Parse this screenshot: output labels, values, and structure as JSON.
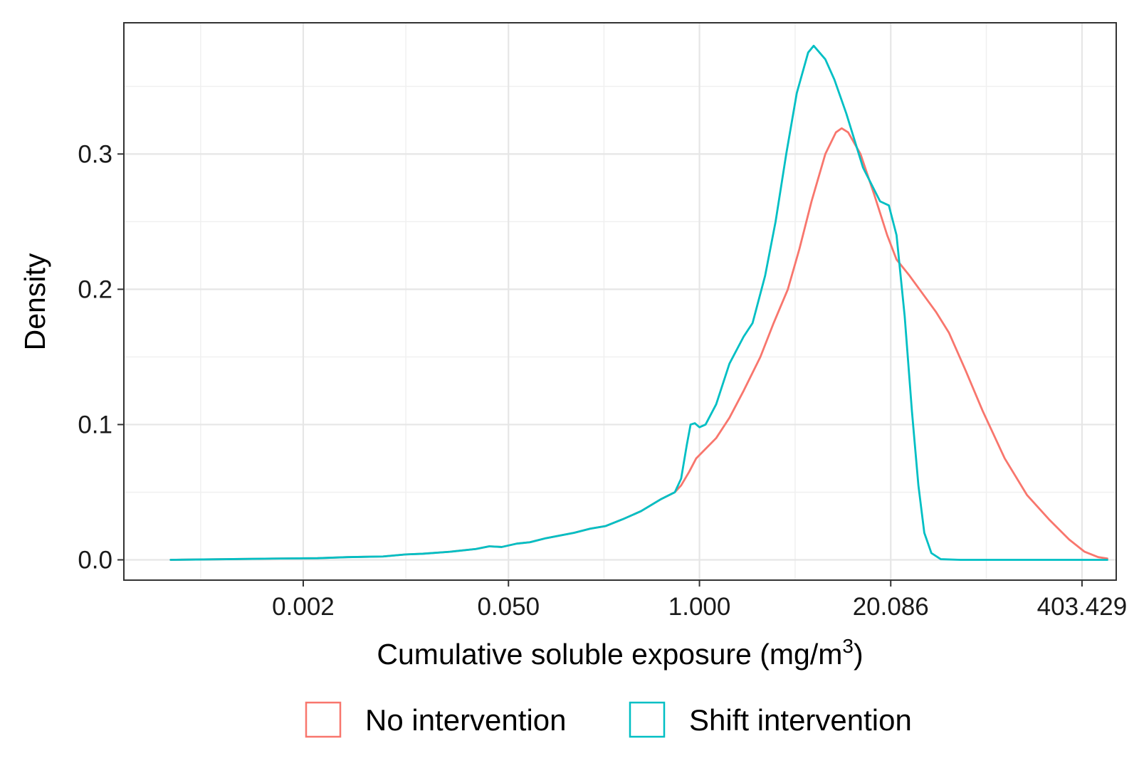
{
  "chart_data": {
    "type": "line",
    "title": "",
    "xlabel": "Cumulative soluble exposure (mg/m",
    "xlabel_superscript": "3",
    "xlabel_suffix": ")",
    "ylabel": "Density",
    "x_scale": "log",
    "xlim": [
      0.00012,
      690
    ],
    "ylim": [
      -0.015,
      0.397
    ],
    "x_ticks": [
      0.002,
      0.05,
      1,
      20.086,
      403.429
    ],
    "x_tick_labels": [
      "0.002",
      "0.050",
      "1.000",
      "20.086",
      "403.429"
    ],
    "y_ticks": [
      0,
      0.1,
      0.2,
      0.3
    ],
    "y_tick_labels": [
      "0.0",
      "0.1",
      "0.2",
      "0.3"
    ],
    "grid": true,
    "legend_position": "bottom",
    "series": [
      {
        "name": "No intervention",
        "color": "#F8766D",
        "points": [
          [
            0.00025,
            0.0
          ],
          [
            0.0006,
            0.0005
          ],
          [
            0.0014,
            0.001
          ],
          [
            0.0025,
            0.0012
          ],
          [
            0.004,
            0.002
          ],
          [
            0.007,
            0.0025
          ],
          [
            0.01,
            0.004
          ],
          [
            0.013,
            0.0045
          ],
          [
            0.02,
            0.006
          ],
          [
            0.03,
            0.008
          ],
          [
            0.037,
            0.01
          ],
          [
            0.045,
            0.0095
          ],
          [
            0.057,
            0.012
          ],
          [
            0.07,
            0.013
          ],
          [
            0.09,
            0.016
          ],
          [
            0.14,
            0.02
          ],
          [
            0.18,
            0.023
          ],
          [
            0.23,
            0.025
          ],
          [
            0.3,
            0.03
          ],
          [
            0.4,
            0.036
          ],
          [
            0.55,
            0.045
          ],
          [
            0.68,
            0.05
          ],
          [
            0.75,
            0.055
          ],
          [
            0.85,
            0.065
          ],
          [
            0.95,
            0.075
          ],
          [
            1.1,
            0.082
          ],
          [
            1.3,
            0.09
          ],
          [
            1.6,
            0.105
          ],
          [
            2.0,
            0.125
          ],
          [
            2.6,
            0.15
          ],
          [
            3.2,
            0.175
          ],
          [
            4.0,
            0.2
          ],
          [
            4.8,
            0.23
          ],
          [
            5.8,
            0.265
          ],
          [
            7.2,
            0.3
          ],
          [
            8.5,
            0.316
          ],
          [
            9.3,
            0.319
          ],
          [
            10.3,
            0.316
          ],
          [
            12.5,
            0.3
          ],
          [
            15.5,
            0.27
          ],
          [
            19.0,
            0.24
          ],
          [
            22.0,
            0.222
          ],
          [
            27.0,
            0.21
          ],
          [
            33.0,
            0.197
          ],
          [
            41.0,
            0.183
          ],
          [
            50.0,
            0.168
          ],
          [
            65.0,
            0.14
          ],
          [
            85.0,
            0.11
          ],
          [
            120.0,
            0.075
          ],
          [
            170.0,
            0.048
          ],
          [
            240.0,
            0.03
          ],
          [
            330.0,
            0.015
          ],
          [
            420.0,
            0.006
          ],
          [
            520.0,
            0.002
          ],
          [
            600.0,
            0.001
          ]
        ]
      },
      {
        "name": "Shift intervention",
        "color": "#00BFC4",
        "points": [
          [
            0.00025,
            0.0
          ],
          [
            0.0006,
            0.0005
          ],
          [
            0.0014,
            0.001
          ],
          [
            0.0025,
            0.0012
          ],
          [
            0.004,
            0.002
          ],
          [
            0.007,
            0.0025
          ],
          [
            0.01,
            0.004
          ],
          [
            0.013,
            0.0045
          ],
          [
            0.02,
            0.006
          ],
          [
            0.03,
            0.008
          ],
          [
            0.037,
            0.01
          ],
          [
            0.045,
            0.0095
          ],
          [
            0.057,
            0.012
          ],
          [
            0.07,
            0.013
          ],
          [
            0.09,
            0.016
          ],
          [
            0.14,
            0.02
          ],
          [
            0.18,
            0.023
          ],
          [
            0.23,
            0.025
          ],
          [
            0.3,
            0.03
          ],
          [
            0.4,
            0.036
          ],
          [
            0.55,
            0.045
          ],
          [
            0.68,
            0.05
          ],
          [
            0.75,
            0.06
          ],
          [
            0.82,
            0.085
          ],
          [
            0.87,
            0.1
          ],
          [
            0.93,
            0.101
          ],
          [
            1.0,
            0.098
          ],
          [
            1.1,
            0.1
          ],
          [
            1.3,
            0.115
          ],
          [
            1.6,
            0.145
          ],
          [
            2.0,
            0.165
          ],
          [
            2.3,
            0.175
          ],
          [
            2.8,
            0.21
          ],
          [
            3.3,
            0.25
          ],
          [
            3.9,
            0.3
          ],
          [
            4.6,
            0.345
          ],
          [
            5.5,
            0.375
          ],
          [
            6.0,
            0.38
          ],
          [
            7.2,
            0.37
          ],
          [
            8.3,
            0.355
          ],
          [
            10.0,
            0.33
          ],
          [
            13.0,
            0.29
          ],
          [
            17.0,
            0.265
          ],
          [
            19.5,
            0.262
          ],
          [
            22.0,
            0.24
          ],
          [
            25.0,
            0.18
          ],
          [
            28.0,
            0.11
          ],
          [
            31.0,
            0.055
          ],
          [
            34.0,
            0.02
          ],
          [
            38.0,
            0.005
          ],
          [
            44.0,
            0.0005
          ],
          [
            60.0,
            0.0
          ],
          [
            600.0,
            0.0
          ]
        ]
      }
    ]
  }
}
